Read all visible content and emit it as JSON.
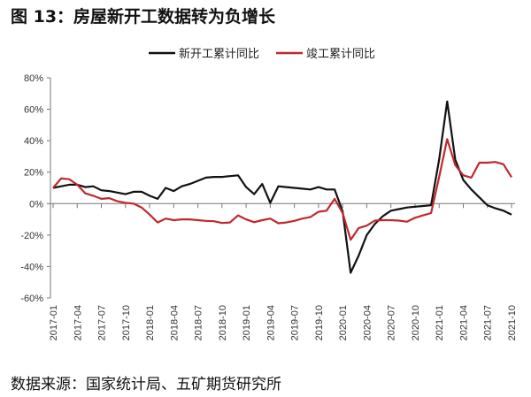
{
  "title": "图 13：房屋新开工数据转为负增长",
  "source": "数据来源：国家统计局、五矿期货研究所",
  "chart_data": {
    "type": "line",
    "title": "图 13：房屋新开工数据转为负增长",
    "xlabel": "",
    "ylabel": "",
    "ylim": [
      -60,
      80
    ],
    "yticks": [
      "80%",
      "60%",
      "40%",
      "20%",
      "0%",
      "-20%",
      "-40%",
      "-60%"
    ],
    "ytick_values": [
      80,
      60,
      40,
      20,
      0,
      -20,
      -40,
      -60
    ],
    "legend_position": "top-center",
    "grid": false,
    "x_tick_labels": [
      "2017-01",
      "2017-04",
      "2017-07",
      "2017-10",
      "2018-01",
      "2018-04",
      "2018-07",
      "2018-10",
      "2019-01",
      "2019-04",
      "2019-07",
      "2019-10",
      "2020-01",
      "2020-04",
      "2020-07",
      "2020-10",
      "2021-01",
      "2021-04",
      "2021-07",
      "2021-10"
    ],
    "x_start": "2017-01",
    "x_end": "2021-10",
    "x_frequency": "monthly",
    "series": [
      {
        "name": "新开工累计同比",
        "color": "#111111",
        "values": [
          10,
          11,
          12,
          12,
          10.5,
          11,
          8.5,
          8,
          7,
          6,
          7.5,
          7.5,
          5,
          3,
          10,
          8,
          11,
          12.5,
          14.5,
          16.5,
          17,
          17,
          17.5,
          18,
          10.5,
          6,
          12.5,
          0.5,
          11,
          10.5,
          10,
          9.5,
          9,
          10.5,
          9,
          9,
          -5,
          -44,
          -33,
          -20,
          -13,
          -8,
          -4.5,
          -3.5,
          -2.5,
          -2,
          -1.5,
          -1,
          28,
          65,
          28,
          15,
          9,
          4,
          -1,
          -3,
          -4.5,
          -7
        ]
      },
      {
        "name": "竣工累计同比",
        "color": "#c0282e",
        "values": [
          10,
          16,
          15.5,
          12,
          6.5,
          5,
          3,
          3.5,
          1.5,
          0.5,
          0,
          -2.5,
          -7,
          -12,
          -9.5,
          -10.5,
          -10,
          -10,
          -10.5,
          -11,
          -11.2,
          -12.3,
          -12,
          -7.5,
          -10,
          -11.8,
          -10.5,
          -9.5,
          -12.5,
          -12,
          -11,
          -9.5,
          -8.5,
          -5.2,
          -4.5,
          3,
          -6,
          -23,
          -15.5,
          -14,
          -10.8,
          -10.5,
          -10.5,
          -10.8,
          -11.5,
          -9,
          -7.5,
          -6,
          17,
          41,
          24.5,
          18,
          16.5,
          26,
          26,
          26.5,
          25,
          16.8
        ]
      }
    ]
  }
}
